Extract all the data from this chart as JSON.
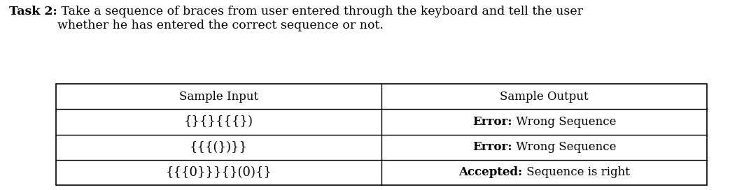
{
  "title_bold": "Task 2:",
  "title_normal": " Take a sequence of braces from user entered through the keyboard and tell the user\nwhether he has entered the correct sequence or not.",
  "col1_header": "Sample Input",
  "col2_header": "Sample Output",
  "rows": [
    {
      "input": "{}{}{{{})",
      "output_bold": "Error:",
      "output_normal": " Wrong Sequence"
    },
    {
      "input": "{{{(})}}",
      "output_bold": "Error:",
      "output_normal": " Wrong Sequence"
    },
    {
      "input": "{{{0}}}{}(0){}",
      "output_bold": "Accepted:",
      "output_normal": " Sequence is right"
    }
  ],
  "bg_color": "#ffffff",
  "text_color": "#000000",
  "font_family": "DejaVu Serif",
  "title_fontsize": 12.5,
  "table_fontsize": 12,
  "table_input_fontsize": 13,
  "figsize": [
    10.63,
    2.72
  ],
  "dpi": 100
}
